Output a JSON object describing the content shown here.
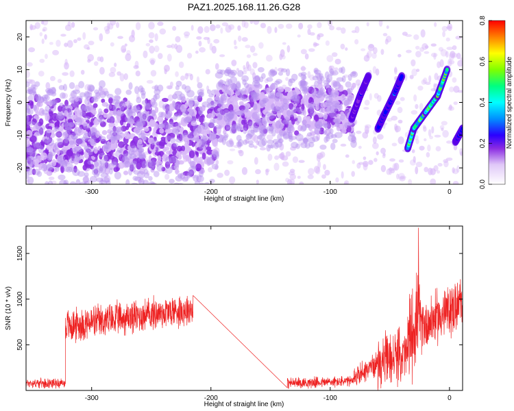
{
  "title": "PAZ1.2025.168.11.26.G28",
  "chart_data": [
    {
      "type": "heatmap",
      "xlabel": "Height of straight line (km)",
      "ylabel": "Frequency (Hz)",
      "xlim": [
        -355,
        11
      ],
      "ylim": [
        -25,
        25
      ],
      "xticks": [
        -300,
        -200,
        -100,
        0
      ],
      "yticks": [
        -20,
        -10,
        0,
        10,
        20
      ],
      "colorbar": {
        "label": "Normalized spectral amplitude",
        "range": [
          0.0,
          0.8
        ],
        "ticks": [
          0.0,
          0.2,
          0.4,
          0.6,
          0.8
        ],
        "colormap": [
          "#ffffff",
          "#d8b8f8",
          "#8a2be2",
          "#5a00e8",
          "#0000ff",
          "#0090ff",
          "#00ffff",
          "#00ff80",
          "#80ff00",
          "#ffff00",
          "#ff8000",
          "#ff0000"
        ]
      },
      "regions": [
        {
          "x": [
            -355,
            -195
          ],
          "y": [
            -20,
            0
          ],
          "level": 0.12
        },
        {
          "x": [
            -195,
            -80
          ],
          "y": [
            -8,
            4
          ],
          "level": 0.1
        }
      ],
      "tracks": [
        {
          "x": [
            -35,
            -30,
            -20,
            -10,
            -2
          ],
          "y": [
            -14,
            -8,
            -3,
            2,
            10
          ],
          "level": 0.55
        },
        {
          "x": [
            -60,
            -55,
            -47,
            -40
          ],
          "y": [
            -8,
            -4,
            2,
            8
          ],
          "level": 0.3
        },
        {
          "x": [
            -82,
            -75,
            -68
          ],
          "y": [
            -5,
            2,
            8
          ],
          "level": 0.25
        },
        {
          "x": [
            5,
            11
          ],
          "y": [
            -12,
            -8
          ],
          "level": 0.3
        }
      ],
      "grid": false
    },
    {
      "type": "line",
      "xlabel": "Height of straight line (km)",
      "ylabel": "SNR (10 * v/v)",
      "xlim": [
        -355,
        11
      ],
      "ylim": [
        0,
        1800
      ],
      "xticks": [
        -300,
        -200,
        -100,
        0
      ],
      "yticks": [
        500,
        1000,
        1500
      ],
      "color": "#ee2222",
      "segments": [
        {
          "x": [
            -355,
            -322
          ],
          "level": [
            80,
            80
          ],
          "noise": 60
        },
        {
          "x": [
            -322,
            -215
          ],
          "level": [
            700,
            900
          ],
          "noise": 220
        },
        {
          "x": [
            -215,
            -136
          ],
          "level": [
            1040,
            30
          ],
          "noise": 0
        },
        {
          "x": [
            -136,
            -80
          ],
          "level": [
            80,
            100
          ],
          "noise": 70
        },
        {
          "x": [
            -80,
            -60
          ],
          "level": [
            150,
            300
          ],
          "noise": 150
        },
        {
          "x": [
            -60,
            -35
          ],
          "level": [
            300,
            400
          ],
          "noise": 350
        },
        {
          "x": [
            -35,
            -25
          ],
          "level": [
            500,
            900
          ],
          "noise": 600
        },
        {
          "x": [
            -25,
            11
          ],
          "level": [
            700,
            950
          ],
          "noise": 350
        }
      ],
      "peak": {
        "x": -26,
        "y": 1780
      },
      "grid": false
    }
  ]
}
